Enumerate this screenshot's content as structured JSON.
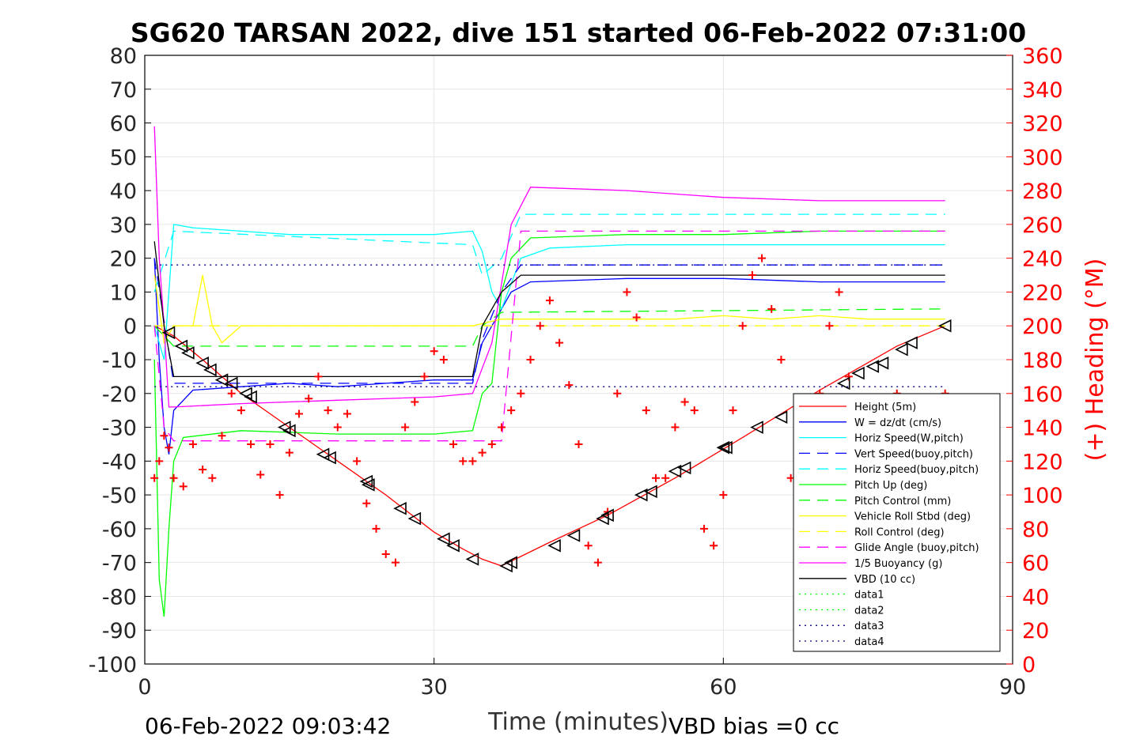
{
  "chart_data": {
    "type": "line",
    "title": "SG620 TARSAN 2022, dive 151 started 06-Feb-2022 07:31:00",
    "xlabel": "Time (minutes)",
    "ylabel_right": "(+) Heading (°M)",
    "footer_left": "06-Feb-2022 09:03:42",
    "footer_right": "VBD bias =0 cc",
    "xlim": [
      0,
      90
    ],
    "ylim": [
      -100,
      80
    ],
    "ylim_right": [
      0,
      360
    ],
    "x_ticks": [
      "0",
      "30",
      "60",
      "90"
    ],
    "y_ticks": [
      "80",
      "70",
      "60",
      "50",
      "40",
      "30",
      "20",
      "10",
      "0",
      "-10",
      "-20",
      "-30",
      "-40",
      "-50",
      "-60",
      "-70",
      "-80",
      "-90",
      "-100"
    ],
    "y_right_ticks": [
      "360",
      "340",
      "320",
      "300",
      "280",
      "260",
      "240",
      "220",
      "200",
      "180",
      "160",
      "140",
      "120",
      "100",
      "80",
      "60",
      "40",
      "20",
      "0"
    ],
    "grid": true,
    "legend_position": "bottom-right",
    "colors": {
      "red": "#ff0000",
      "blue": "#0000ff",
      "cyan": "#00ffff",
      "green": "#00ff00",
      "yellow": "#ffff00",
      "magenta": "#ff00ff",
      "black": "#000000",
      "darkblue": "#000080"
    },
    "series": [
      {
        "name": "Height (5m)",
        "color": "red",
        "style": "solid",
        "x": [
          1,
          3,
          6,
          10,
          15,
          20,
          25,
          30,
          33,
          35,
          37,
          42,
          48,
          55,
          62,
          70,
          78,
          83
        ],
        "y": [
          0,
          -3,
          -10,
          -20,
          -30,
          -40,
          -50,
          -61,
          -66,
          -69,
          -71,
          -64,
          -56,
          -45,
          -33,
          -19,
          -6,
          0
        ]
      },
      {
        "name": "W = dz/dt (cm/s)",
        "color": "blue",
        "style": "solid",
        "x": [
          1,
          1.5,
          2,
          2.5,
          3,
          5,
          10,
          15,
          20,
          25,
          30,
          34,
          35,
          36,
          37,
          38,
          40,
          50,
          60,
          70,
          83
        ],
        "y": [
          20,
          -10,
          -30,
          -38,
          -25,
          -19,
          -18,
          -17,
          -18,
          -17,
          -16,
          -16,
          -5,
          0,
          5,
          10,
          13,
          14,
          14,
          13,
          13
        ]
      },
      {
        "name": "Horiz Speed(W,pitch)",
        "color": "cyan",
        "style": "solid",
        "x": [
          1,
          2,
          2.5,
          3,
          5,
          10,
          15,
          20,
          25,
          30,
          34,
          35,
          36,
          37,
          39,
          42,
          50,
          60,
          70,
          83
        ],
        "y": [
          0,
          -10,
          10,
          30,
          29,
          28,
          27,
          27,
          27,
          27,
          28,
          22,
          10,
          5,
          20,
          23,
          24,
          24,
          24,
          24
        ]
      },
      {
        "name": "Vert Speed(buoy,pitch)",
        "color": "blue",
        "style": "dashed",
        "x": [
          1,
          3,
          34,
          35,
          37,
          39,
          83
        ],
        "y": [
          20,
          -17,
          -17,
          -4,
          10,
          18,
          18
        ]
      },
      {
        "name": "Horiz Speed(buoy,pitch)",
        "color": "cyan",
        "style": "dashed",
        "x": [
          1,
          3,
          34,
          35,
          37,
          39,
          83
        ],
        "y": [
          10,
          28,
          24,
          15,
          20,
          33,
          33
        ]
      },
      {
        "name": "Pitch Up (deg)",
        "color": "green",
        "style": "solid",
        "x": [
          1,
          1.5,
          2,
          2.5,
          3,
          4,
          10,
          20,
          30,
          34,
          35,
          36,
          37,
          38,
          40,
          50,
          60,
          70,
          83
        ],
        "y": [
          -10,
          -75,
          -86,
          -60,
          -40,
          -33,
          -31,
          -32,
          -32,
          -31,
          -20,
          -17,
          10,
          20,
          26,
          27,
          27,
          28,
          28
        ]
      },
      {
        "name": "Pitch Control (mm)",
        "color": "green",
        "style": "dashed",
        "x": [
          1,
          3,
          34,
          35,
          37,
          83
        ],
        "y": [
          0,
          -6,
          -6,
          0,
          4,
          5
        ]
      },
      {
        "name": "Vehicle Roll Stbd (deg)",
        "color": "yellow",
        "style": "solid",
        "x": [
          1,
          2,
          3,
          5,
          6,
          7,
          8,
          10,
          15,
          20,
          25,
          30,
          34,
          37,
          40,
          45,
          50,
          55,
          60,
          65,
          70,
          75,
          83
        ],
        "y": [
          15,
          -5,
          0,
          0,
          15,
          0,
          -5,
          0,
          0,
          0,
          0,
          0,
          0,
          2,
          2,
          2,
          2,
          2,
          3,
          2,
          3,
          2,
          2
        ]
      },
      {
        "name": "Roll Control (deg)",
        "color": "yellow",
        "style": "dashed",
        "x": [
          1,
          83
        ],
        "y": [
          0,
          0
        ]
      },
      {
        "name": "Glide Angle (buoy,pitch)",
        "color": "magenta",
        "style": "dashed",
        "x": [
          1,
          2,
          3,
          34,
          35,
          37,
          39,
          83
        ],
        "y": [
          0,
          -30,
          -34,
          -34,
          -34,
          -34,
          28,
          28
        ]
      },
      {
        "name": "1/5 Buoyancy (g)",
        "color": "magenta",
        "style": "solid",
        "x": [
          1,
          1.5,
          2,
          2.5,
          3,
          10,
          20,
          30,
          34,
          36,
          38,
          40,
          50,
          60,
          70,
          83
        ],
        "y": [
          59,
          20,
          0,
          -24,
          -24,
          -23,
          -22,
          -21,
          -20,
          -5,
          30,
          41,
          40,
          38,
          37,
          37
        ]
      },
      {
        "name": "VBD (10 cc)",
        "color": "black",
        "style": "solid",
        "x": [
          1,
          2,
          3,
          34,
          35,
          37,
          39,
          83
        ],
        "y": [
          25,
          0,
          -15,
          -15,
          0,
          10,
          15,
          15
        ]
      },
      {
        "name": "data1",
        "color": "green",
        "style": "dotted",
        "x": [],
        "y": []
      },
      {
        "name": "data2",
        "color": "green",
        "style": "dotted",
        "x": [],
        "y": []
      },
      {
        "name": "data3",
        "color": "darkblue",
        "style": "dotted",
        "x": [
          1,
          83
        ],
        "y": [
          18,
          18
        ]
      },
      {
        "name": "data4",
        "color": "darkblue",
        "style": "dotted",
        "x": [
          1,
          83
        ],
        "y": [
          -18,
          -18
        ]
      }
    ],
    "heading_markers": {
      "color": "red",
      "marker": "+",
      "x": [
        1,
        1.5,
        2,
        2.5,
        3,
        4,
        5,
        6,
        7,
        8,
        9,
        10,
        11,
        12,
        13,
        14,
        15,
        16,
        17,
        18,
        19,
        20,
        21,
        22,
        23,
        24,
        25,
        26,
        27,
        28,
        29,
        30,
        31,
        32,
        33,
        34,
        35,
        36,
        37,
        38,
        39,
        40,
        41,
        42,
        43,
        44,
        45,
        46,
        47,
        48,
        49,
        50,
        51,
        52,
        53,
        54,
        55,
        56,
        57,
        58,
        59,
        60,
        61,
        62,
        63,
        64,
        65,
        66,
        67,
        68,
        69,
        70,
        71,
        72,
        73,
        74,
        75,
        76,
        77,
        78,
        79,
        80,
        81,
        82,
        83
      ],
      "y": [
        110,
        120,
        135,
        128,
        110,
        105,
        130,
        115,
        110,
        135,
        160,
        150,
        130,
        112,
        130,
        100,
        125,
        148,
        157,
        170,
        150,
        140,
        148,
        120,
        95,
        80,
        65,
        60,
        140,
        155,
        170,
        185,
        180,
        130,
        120,
        120,
        125,
        130,
        140,
        150,
        160,
        180,
        200,
        215,
        190,
        165,
        130,
        70,
        60,
        90,
        160,
        220,
        205,
        150,
        110,
        110,
        140,
        155,
        150,
        80,
        70,
        100,
        150,
        200,
        230,
        240,
        210,
        180,
        110,
        100,
        140,
        160,
        200,
        220,
        170,
        100,
        110,
        130,
        150,
        160,
        140,
        130,
        140,
        150,
        160
      ]
    },
    "depth_triangles": {
      "color": "black",
      "marker": "triangle-left",
      "x": [
        2.5,
        3.8,
        4.5,
        6,
        6.8,
        8,
        9,
        10.5,
        11,
        14.5,
        15,
        18.5,
        19.2,
        23,
        23.2,
        26.5,
        28,
        31,
        32,
        34,
        37.5,
        38,
        42.5,
        44.5,
        47.5,
        48,
        51.5,
        52.5,
        55,
        56,
        60,
        60.3,
        63.5,
        66,
        72.5,
        74,
        75.5,
        76.5,
        78.5,
        79.5,
        83
      ],
      "y": [
        -2,
        -6,
        -8,
        -11,
        -13,
        -16,
        -17,
        -20,
        -21,
        -30,
        -31,
        -38,
        -39,
        -46,
        -47,
        -54,
        -57,
        -63,
        -65,
        -69,
        -71,
        -70,
        -65,
        -62,
        -57,
        -56,
        -50,
        -49,
        -43,
        -42,
        -36,
        -36,
        -30,
        -27,
        -17,
        -14,
        -12,
        -11,
        -7,
        -5,
        0
      ]
    }
  }
}
